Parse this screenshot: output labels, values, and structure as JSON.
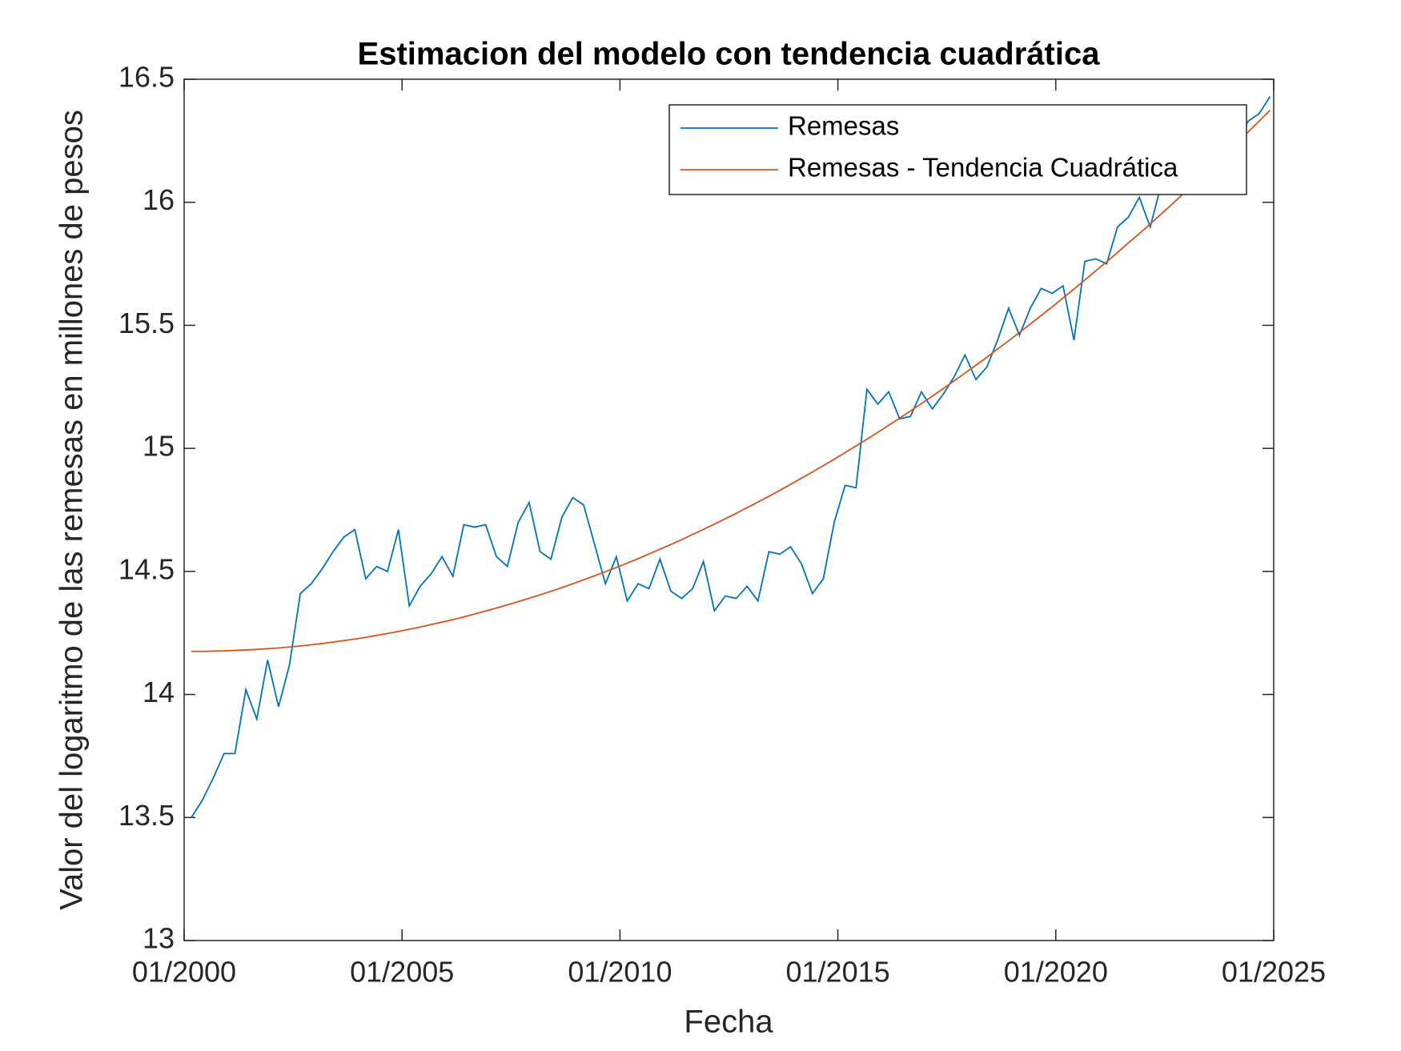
{
  "chart_data": {
    "type": "line",
    "title": "Estimacion del modelo con tendencia cuadrática",
    "xlabel": "Fecha",
    "ylabel": "Valor del logaritmo de las remesas en millones de pesos",
    "x": [
      "03/2000",
      "06/2000",
      "09/2000",
      "12/2000",
      "03/2001",
      "06/2001",
      "09/2001",
      "12/2001",
      "03/2002",
      "06/2002",
      "09/2002",
      "12/2002",
      "03/2003",
      "06/2003",
      "09/2003",
      "12/2003",
      "03/2004",
      "06/2004",
      "09/2004",
      "12/2004",
      "03/2005",
      "06/2005",
      "09/2005",
      "12/2005",
      "03/2006",
      "06/2006",
      "09/2006",
      "12/2006",
      "03/2007",
      "06/2007",
      "09/2007",
      "12/2007",
      "03/2008",
      "06/2008",
      "09/2008",
      "12/2008",
      "03/2009",
      "06/2009",
      "09/2009",
      "12/2009",
      "03/2010",
      "06/2010",
      "09/2010",
      "12/2010",
      "03/2011",
      "06/2011",
      "09/2011",
      "12/2011",
      "03/2012",
      "06/2012",
      "09/2012",
      "12/2012",
      "03/2013",
      "06/2013",
      "09/2013",
      "12/2013",
      "03/2014",
      "06/2014",
      "09/2014",
      "12/2014",
      "03/2015",
      "06/2015",
      "09/2015",
      "12/2015",
      "03/2016",
      "06/2016",
      "09/2016",
      "12/2016",
      "03/2017",
      "06/2017",
      "09/2017",
      "12/2017",
      "03/2018",
      "06/2018",
      "09/2018",
      "12/2018",
      "03/2019",
      "06/2019",
      "09/2019",
      "12/2019",
      "03/2020",
      "06/2020",
      "09/2020",
      "12/2020",
      "03/2021",
      "06/2021",
      "09/2021",
      "12/2021",
      "03/2022",
      "06/2022",
      "09/2022",
      "12/2022",
      "03/2023",
      "06/2023",
      "09/2023",
      "12/2023",
      "03/2024",
      "06/2024",
      "09/2024",
      "12/2024"
    ],
    "series": [
      {
        "name": "Remesas",
        "color": "#0072BD",
        "values": [
          13.5,
          13.57,
          13.66,
          13.76,
          13.76,
          14.02,
          13.9,
          14.14,
          13.95,
          14.12,
          14.41,
          14.45,
          14.51,
          14.58,
          14.64,
          14.67,
          14.47,
          14.52,
          14.5,
          14.67,
          14.36,
          14.44,
          14.49,
          14.56,
          14.48,
          14.69,
          14.68,
          14.69,
          14.56,
          14.52,
          14.7,
          14.78,
          14.58,
          14.55,
          14.72,
          14.8,
          14.77,
          14.61,
          14.45,
          14.56,
          14.38,
          14.45,
          14.43,
          14.55,
          14.42,
          14.39,
          14.43,
          14.54,
          14.34,
          14.4,
          14.39,
          14.44,
          14.38,
          14.58,
          14.57,
          14.6,
          14.53,
          14.41,
          14.47,
          14.7,
          14.85,
          14.84,
          15.24,
          15.18,
          15.23,
          15.12,
          15.13,
          15.23,
          15.16,
          15.22,
          15.29,
          15.38,
          15.28,
          15.33,
          15.44,
          15.57,
          15.46,
          15.57,
          15.65,
          15.63,
          15.66,
          15.44,
          15.76,
          15.77,
          15.75,
          15.9,
          15.94,
          16.02,
          15.9,
          16.07,
          16.1,
          16.17,
          16.22,
          16.3,
          16.24,
          16.2,
          16.25,
          16.33,
          16.36,
          16.43
        ]
      },
      {
        "name": "Remesas - Tendencia Cuadrática",
        "color": "#D95319",
        "values": [
          14.175,
          14.175,
          14.176,
          14.177,
          14.179,
          14.181,
          14.183,
          14.186,
          14.189,
          14.193,
          14.197,
          14.202,
          14.207,
          14.213,
          14.219,
          14.225,
          14.232,
          14.24,
          14.248,
          14.256,
          14.265,
          14.274,
          14.284,
          14.294,
          14.304,
          14.315,
          14.327,
          14.339,
          14.351,
          14.364,
          14.377,
          14.391,
          14.405,
          14.419,
          14.434,
          14.45,
          14.466,
          14.482,
          14.499,
          14.516,
          14.534,
          14.552,
          14.571,
          14.59,
          14.609,
          14.629,
          14.65,
          14.671,
          14.692,
          14.714,
          14.736,
          14.759,
          14.782,
          14.805,
          14.829,
          14.854,
          14.879,
          14.904,
          14.93,
          14.956,
          14.983,
          15.01,
          15.037,
          15.065,
          15.094,
          15.123,
          15.152,
          15.182,
          15.212,
          15.243,
          15.274,
          15.306,
          15.338,
          15.37,
          15.404,
          15.437,
          15.471,
          15.505,
          15.54,
          15.575,
          15.611,
          15.647,
          15.684,
          15.721,
          15.758,
          15.796,
          15.835,
          15.873,
          15.912,
          15.952,
          15.992,
          16.033,
          16.074,
          16.115,
          16.157,
          16.2,
          16.243,
          16.286,
          16.33,
          16.374
        ]
      }
    ],
    "xlim": [
      "01/2000",
      "01/2025"
    ],
    "xticks": [
      "01/2000",
      "01/2005",
      "01/2010",
      "01/2015",
      "01/2020",
      "01/2025"
    ],
    "ylim": [
      13,
      16.5
    ],
    "yticks": [
      13,
      13.5,
      14,
      14.5,
      15,
      15.5,
      16,
      16.5
    ],
    "legend": "northeast"
  }
}
